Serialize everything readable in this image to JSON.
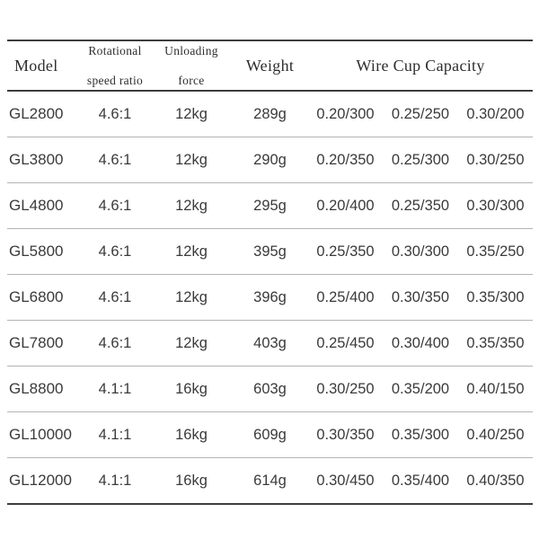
{
  "table": {
    "headers": {
      "model": "Model",
      "ratio_line1": "Rotational",
      "ratio_line2": "speed ratio",
      "force_line1": "Unloading",
      "force_line2": "force",
      "weight": "Weight",
      "capacity": "Wire Cup Capacity"
    },
    "rows": [
      {
        "model": "GL2800",
        "ratio": "4.6:1",
        "force": "12kg",
        "weight": "289g",
        "cap1": "0.20/300",
        "cap2": "0.25/250",
        "cap3": "0.30/200"
      },
      {
        "model": "GL3800",
        "ratio": "4.6:1",
        "force": "12kg",
        "weight": "290g",
        "cap1": "0.20/350",
        "cap2": "0.25/300",
        "cap3": "0.30/250"
      },
      {
        "model": "GL4800",
        "ratio": "4.6:1",
        "force": "12kg",
        "weight": "295g",
        "cap1": "0.20/400",
        "cap2": "0.25/350",
        "cap3": "0.30/300"
      },
      {
        "model": "GL5800",
        "ratio": "4.6:1",
        "force": "12kg",
        "weight": "395g",
        "cap1": "0.25/350",
        "cap2": "0.30/300",
        "cap3": "0.35/250"
      },
      {
        "model": "GL6800",
        "ratio": "4.6:1",
        "force": "12kg",
        "weight": "396g",
        "cap1": "0.25/400",
        "cap2": "0.30/350",
        "cap3": "0.35/300"
      },
      {
        "model": "GL7800",
        "ratio": "4.6:1",
        "force": "12kg",
        "weight": "403g",
        "cap1": "0.25/450",
        "cap2": "0.30/400",
        "cap3": "0.35/350"
      },
      {
        "model": "GL8800",
        "ratio": "4.1:1",
        "force": "16kg",
        "weight": "603g",
        "cap1": "0.30/250",
        "cap2": "0.35/200",
        "cap3": "0.40/150"
      },
      {
        "model": "GL10000",
        "ratio": "4.1:1",
        "force": "16kg",
        "weight": "609g",
        "cap1": "0.30/350",
        "cap2": "0.35/300",
        "cap3": "0.40/250"
      },
      {
        "model": "GL12000",
        "ratio": "4.1:1",
        "force": "16kg",
        "weight": "614g",
        "cap1": "0.30/450",
        "cap2": "0.35/400",
        "cap3": "0.40/350"
      }
    ]
  },
  "colors": {
    "rule_dark": "#3d3d3d",
    "rule_light": "#b3b3b3",
    "text": "#3a3a3a"
  }
}
